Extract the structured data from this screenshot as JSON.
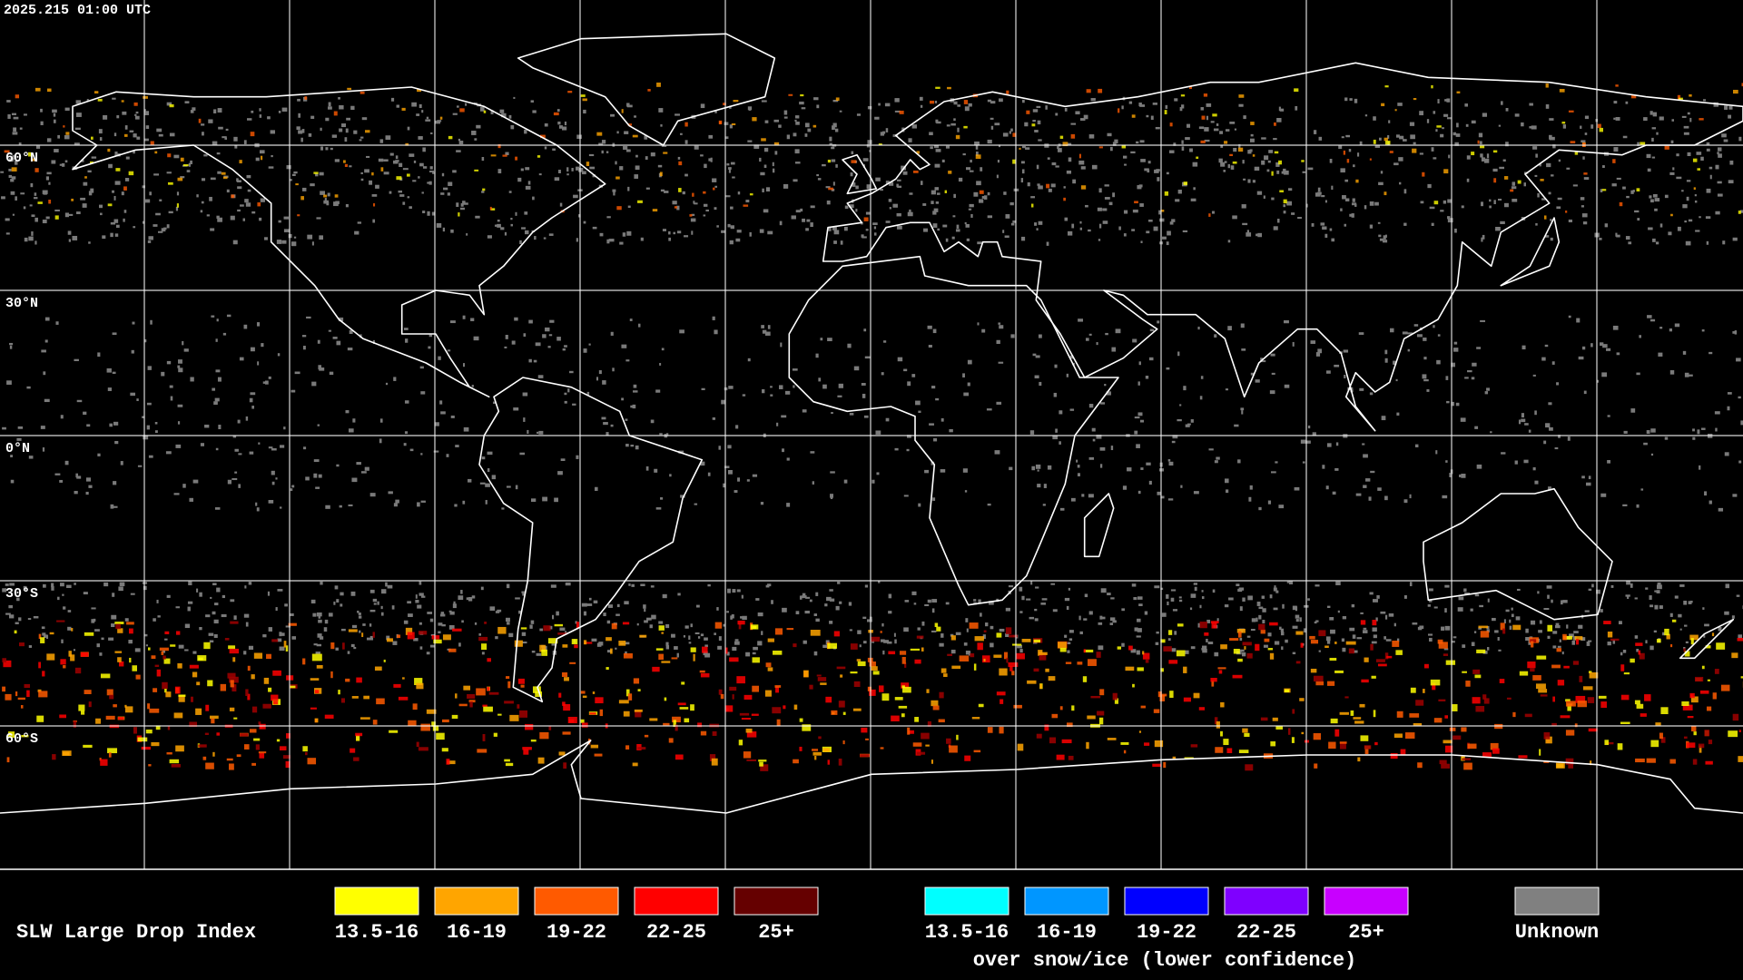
{
  "header": {
    "timestamp": "2025.215 01:00 UTC"
  },
  "grid": {
    "lat_labels": [
      "60°N",
      "30°N",
      "0°N",
      "30°S",
      "60°S"
    ]
  },
  "legend": {
    "title": "SLW Large Drop Index",
    "normal": [
      {
        "label": "13.5-16",
        "color": "#ffff00"
      },
      {
        "label": "16-19",
        "color": "#ffa500"
      },
      {
        "label": "19-22",
        "color": "#ff5a00"
      },
      {
        "label": "22-25",
        "color": "#ff0000"
      },
      {
        "label": "25+",
        "color": "#650000"
      }
    ],
    "snow_ice": [
      {
        "label": "13.5-16",
        "color": "#00ffff"
      },
      {
        "label": "16-19",
        "color": "#0096ff"
      },
      {
        "label": "19-22",
        "color": "#0000ff"
      },
      {
        "label": "22-25",
        "color": "#7f00ff"
      },
      {
        "label": "25+",
        "color": "#c800ff"
      }
    ],
    "snow_ice_note": "over snow/ice (lower confidence)",
    "unknown": {
      "label": "Unknown",
      "color": "#808080"
    }
  }
}
